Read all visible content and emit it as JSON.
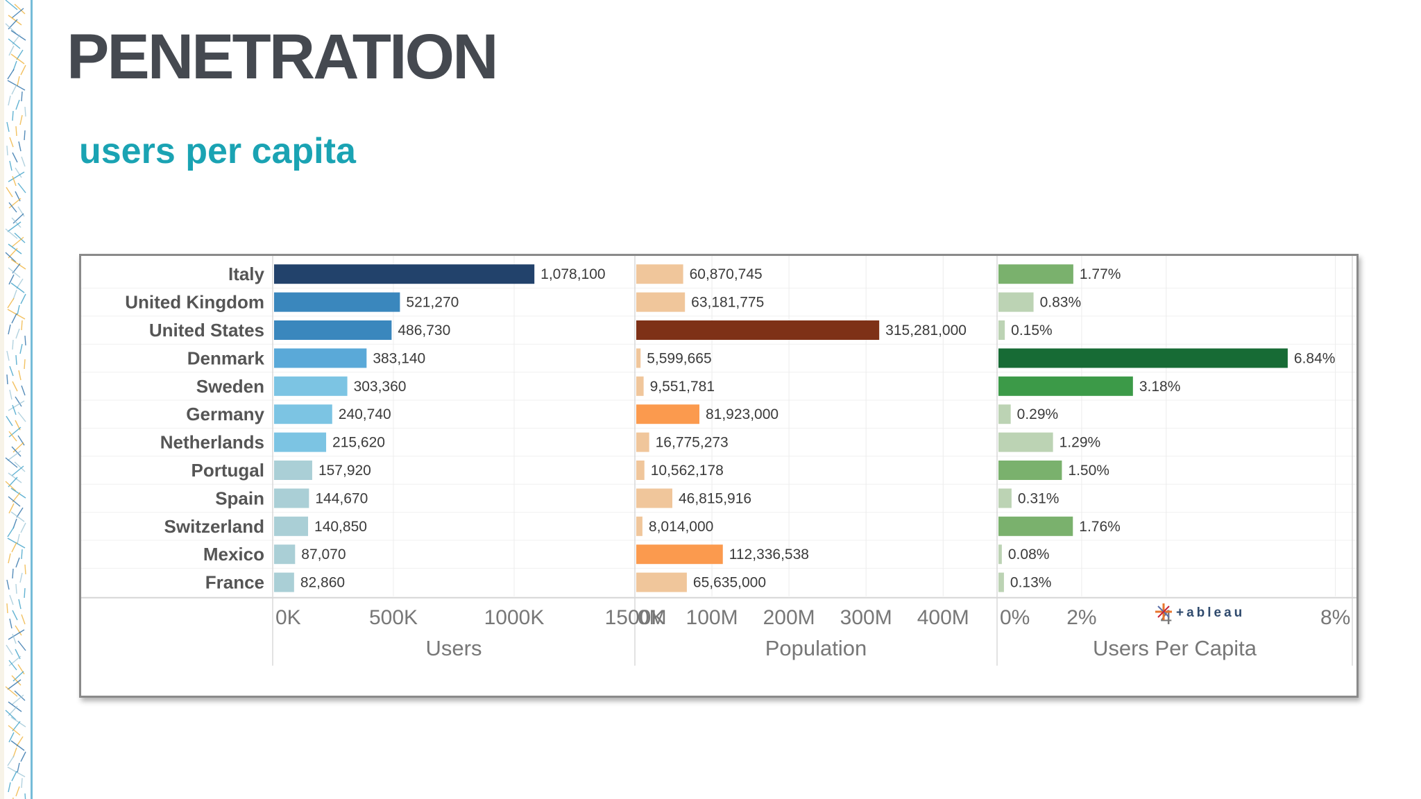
{
  "slide": {
    "title": "PENETRATION",
    "subtitle": "users per capita"
  },
  "watermark": {
    "text": "+ableau"
  },
  "colors": {
    "title": "#454950",
    "subtitle": "#1aa3b3"
  },
  "chart_data": {
    "type": "bar",
    "orientation": "horizontal",
    "grid": true,
    "categories": [
      "Italy",
      "United Kingdom",
      "United States",
      "Denmark",
      "Sweden",
      "Germany",
      "Netherlands",
      "Portugal",
      "Spain",
      "Switzerland",
      "Mexico",
      "France"
    ],
    "panels": [
      {
        "xlabel": "Users",
        "xlim": [
          0,
          1500000
        ],
        "ticks": [
          0,
          500000,
          1000000,
          1500000
        ],
        "tick_labels": [
          "0K",
          "500K",
          "1000K",
          "1500K"
        ],
        "values": [
          1078100,
          521270,
          486730,
          383140,
          303360,
          240740,
          215620,
          157920,
          144670,
          140850,
          87070,
          82860
        ],
        "value_labels": [
          "1,078,100",
          "521,270",
          "486,730",
          "383,140",
          "303,360",
          "240,740",
          "215,620",
          "157,920",
          "144,670",
          "140,850",
          "87,070",
          "82,860"
        ],
        "colors": [
          "#22426b",
          "#3a87bd",
          "#3a87bd",
          "#5aa9d8",
          "#7cc4e3",
          "#7cc4e3",
          "#7cc4e3",
          "#aacfd6",
          "#aacfd6",
          "#aacfd6",
          "#aacfd6",
          "#aacfd6"
        ]
      },
      {
        "xlabel": "Population",
        "xlim": [
          0,
          470000000
        ],
        "ticks": [
          0,
          100000000,
          200000000,
          300000000,
          400000000
        ],
        "tick_labels": [
          "0M",
          "100M",
          "200M",
          "300M",
          "400M"
        ],
        "values": [
          60870745,
          63181775,
          315281000,
          5599665,
          9551781,
          81923000,
          16775273,
          10562178,
          46815916,
          8014000,
          112336538,
          65635000
        ],
        "value_labels": [
          "60,870,745",
          "63,181,775",
          "315,281,000",
          "5,599,665",
          "9,551,781",
          "81,923,000",
          "16,775,273",
          "10,562,178",
          "46,815,916",
          "8,014,000",
          "112,336,538",
          "65,635,000"
        ],
        "colors": [
          "#f0c69b",
          "#f0c69b",
          "#7e3117",
          "#f0c69b",
          "#f0c69b",
          "#fb9a4e",
          "#f0c69b",
          "#f0c69b",
          "#f0c69b",
          "#f0c69b",
          "#fb9a4e",
          "#f0c69b"
        ]
      },
      {
        "xlabel": "Users Per Capita",
        "xlim": [
          0,
          8.4
        ],
        "ticks": [
          0,
          2,
          4,
          8
        ],
        "tick_labels": [
          "0%",
          "2%",
          "4",
          "8%"
        ],
        "values": [
          1.77,
          0.83,
          0.15,
          6.84,
          3.18,
          0.29,
          1.29,
          1.5,
          0.31,
          1.76,
          0.08,
          0.13
        ],
        "value_labels": [
          "1.77%",
          "0.83%",
          "0.15%",
          "6.84%",
          "3.18%",
          "0.29%",
          "1.29%",
          "1.50%",
          "0.31%",
          "1.76%",
          "0.08%",
          "0.13%"
        ],
        "colors": [
          "#7ab16d",
          "#bcd3b4",
          "#bcd3b4",
          "#176b35",
          "#3c9a48",
          "#bcd3b4",
          "#bcd3b4",
          "#7ab16d",
          "#bcd3b4",
          "#7ab16d",
          "#bcd3b4",
          "#bcd3b4"
        ]
      }
    ]
  }
}
